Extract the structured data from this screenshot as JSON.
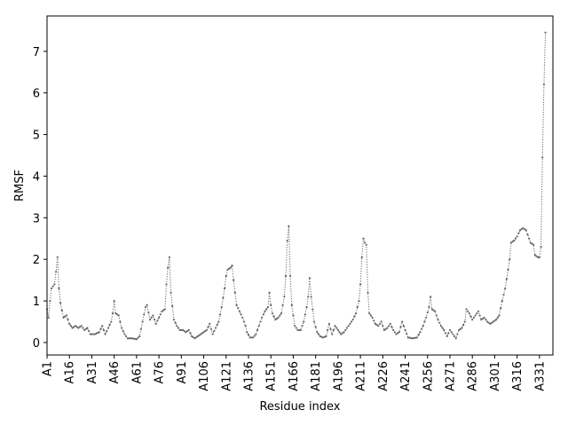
{
  "chart_data": {
    "type": "line",
    "title": "",
    "xlabel": "Residue index",
    "ylabel": "RMSF",
    "ylim": [
      -0.3,
      7.85
    ],
    "yticks": [
      0,
      1,
      2,
      3,
      4,
      5,
      6,
      7
    ],
    "xticks": [
      "A1",
      "A16",
      "A31",
      "A46",
      "A61",
      "A76",
      "A91",
      "A106",
      "A121",
      "A136",
      "A151",
      "A166",
      "A181",
      "A196",
      "A211",
      "A226",
      "A241",
      "A256",
      "A271",
      "A286",
      "A301",
      "A316",
      "A331"
    ],
    "x_range": [
      1,
      340
    ],
    "grid": false,
    "line_style": "dotted",
    "marker": "point",
    "color": "#666666",
    "series": [
      {
        "name": "",
        "anchors": [
          [
            1,
            0.8
          ],
          [
            2,
            0.6
          ],
          [
            3,
            1.0
          ],
          [
            4,
            1.3
          ],
          [
            6,
            1.4
          ],
          [
            7,
            1.7
          ],
          [
            8,
            2.05
          ],
          [
            9,
            1.3
          ],
          [
            10,
            0.95
          ],
          [
            12,
            0.6
          ],
          [
            14,
            0.65
          ],
          [
            16,
            0.45
          ],
          [
            18,
            0.35
          ],
          [
            20,
            0.4
          ],
          [
            22,
            0.35
          ],
          [
            24,
            0.4
          ],
          [
            26,
            0.3
          ],
          [
            28,
            0.35
          ],
          [
            30,
            0.2
          ],
          [
            33,
            0.2
          ],
          [
            36,
            0.25
          ],
          [
            38,
            0.4
          ],
          [
            40,
            0.2
          ],
          [
            42,
            0.35
          ],
          [
            44,
            0.5
          ],
          [
            45,
            0.7
          ],
          [
            46,
            1.0
          ],
          [
            47,
            0.7
          ],
          [
            49,
            0.65
          ],
          [
            51,
            0.35
          ],
          [
            53,
            0.2
          ],
          [
            55,
            0.1
          ],
          [
            58,
            0.1
          ],
          [
            61,
            0.08
          ],
          [
            63,
            0.15
          ],
          [
            65,
            0.5
          ],
          [
            67,
            0.85
          ],
          [
            68,
            0.9
          ],
          [
            70,
            0.55
          ],
          [
            72,
            0.65
          ],
          [
            74,
            0.45
          ],
          [
            76,
            0.6
          ],
          [
            78,
            0.75
          ],
          [
            80,
            0.8
          ],
          [
            81,
            1.4
          ],
          [
            82,
            1.8
          ],
          [
            83,
            2.05
          ],
          [
            84,
            1.2
          ],
          [
            86,
            0.55
          ],
          [
            88,
            0.4
          ],
          [
            90,
            0.3
          ],
          [
            92,
            0.3
          ],
          [
            94,
            0.25
          ],
          [
            96,
            0.3
          ],
          [
            98,
            0.15
          ],
          [
            100,
            0.1
          ],
          [
            102,
            0.15
          ],
          [
            104,
            0.2
          ],
          [
            106,
            0.25
          ],
          [
            108,
            0.3
          ],
          [
            110,
            0.45
          ],
          [
            112,
            0.2
          ],
          [
            114,
            0.35
          ],
          [
            116,
            0.5
          ],
          [
            118,
            0.85
          ],
          [
            120,
            1.3
          ],
          [
            121,
            1.6
          ],
          [
            122,
            1.75
          ],
          [
            124,
            1.8
          ],
          [
            125,
            1.85
          ],
          [
            126,
            1.5
          ],
          [
            128,
            0.9
          ],
          [
            130,
            0.75
          ],
          [
            132,
            0.6
          ],
          [
            134,
            0.4
          ],
          [
            135,
            0.25
          ],
          [
            137,
            0.12
          ],
          [
            139,
            0.12
          ],
          [
            141,
            0.2
          ],
          [
            143,
            0.4
          ],
          [
            145,
            0.6
          ],
          [
            147,
            0.75
          ],
          [
            149,
            0.85
          ],
          [
            150,
            1.2
          ],
          [
            151,
            0.9
          ],
          [
            152,
            0.7
          ],
          [
            154,
            0.55
          ],
          [
            156,
            0.6
          ],
          [
            158,
            0.7
          ],
          [
            160,
            1.1
          ],
          [
            161,
            1.6
          ],
          [
            162,
            2.45
          ],
          [
            163,
            2.8
          ],
          [
            164,
            1.6
          ],
          [
            165,
            0.9
          ],
          [
            167,
            0.4
          ],
          [
            169,
            0.3
          ],
          [
            171,
            0.3
          ],
          [
            173,
            0.5
          ],
          [
            175,
            0.85
          ],
          [
            176,
            1.1
          ],
          [
            177,
            1.55
          ],
          [
            178,
            1.1
          ],
          [
            180,
            0.5
          ],
          [
            182,
            0.25
          ],
          [
            184,
            0.15
          ],
          [
            186,
            0.12
          ],
          [
            188,
            0.15
          ],
          [
            190,
            0.45
          ],
          [
            192,
            0.2
          ],
          [
            194,
            0.4
          ],
          [
            196,
            0.3
          ],
          [
            198,
            0.2
          ],
          [
            200,
            0.25
          ],
          [
            202,
            0.35
          ],
          [
            204,
            0.45
          ],
          [
            206,
            0.55
          ],
          [
            208,
            0.7
          ],
          [
            210,
            1.0
          ],
          [
            211,
            1.4
          ],
          [
            212,
            2.05
          ],
          [
            213,
            2.5
          ],
          [
            214,
            2.4
          ],
          [
            215,
            2.35
          ],
          [
            216,
            1.2
          ],
          [
            217,
            0.7
          ],
          [
            219,
            0.6
          ],
          [
            221,
            0.45
          ],
          [
            223,
            0.4
          ],
          [
            225,
            0.5
          ],
          [
            227,
            0.3
          ],
          [
            229,
            0.35
          ],
          [
            231,
            0.45
          ],
          [
            233,
            0.3
          ],
          [
            235,
            0.2
          ],
          [
            237,
            0.25
          ],
          [
            239,
            0.5
          ],
          [
            241,
            0.3
          ],
          [
            243,
            0.12
          ],
          [
            246,
            0.1
          ],
          [
            249,
            0.12
          ],
          [
            251,
            0.25
          ],
          [
            253,
            0.4
          ],
          [
            255,
            0.6
          ],
          [
            257,
            0.85
          ],
          [
            258,
            1.1
          ],
          [
            259,
            0.8
          ],
          [
            261,
            0.75
          ],
          [
            263,
            0.55
          ],
          [
            265,
            0.4
          ],
          [
            267,
            0.3
          ],
          [
            269,
            0.15
          ],
          [
            271,
            0.3
          ],
          [
            273,
            0.2
          ],
          [
            275,
            0.1
          ],
          [
            277,
            0.3
          ],
          [
            279,
            0.35
          ],
          [
            281,
            0.5
          ],
          [
            282,
            0.8
          ],
          [
            284,
            0.7
          ],
          [
            286,
            0.55
          ],
          [
            288,
            0.65
          ],
          [
            290,
            0.75
          ],
          [
            292,
            0.55
          ],
          [
            294,
            0.6
          ],
          [
            296,
            0.5
          ],
          [
            298,
            0.45
          ],
          [
            300,
            0.5
          ],
          [
            302,
            0.55
          ],
          [
            304,
            0.65
          ],
          [
            306,
            1.0
          ],
          [
            308,
            1.3
          ],
          [
            310,
            1.75
          ],
          [
            311,
            2.0
          ],
          [
            312,
            2.4
          ],
          [
            314,
            2.45
          ],
          [
            316,
            2.55
          ],
          [
            318,
            2.7
          ],
          [
            320,
            2.75
          ],
          [
            322,
            2.7
          ],
          [
            323,
            2.6
          ],
          [
            325,
            2.4
          ],
          [
            327,
            2.35
          ],
          [
            328,
            2.1
          ],
          [
            330,
            2.05
          ],
          [
            331,
            2.05
          ],
          [
            332,
            2.3
          ],
          [
            333,
            4.45
          ],
          [
            334,
            6.2
          ],
          [
            335,
            7.45
          ]
        ]
      }
    ]
  }
}
